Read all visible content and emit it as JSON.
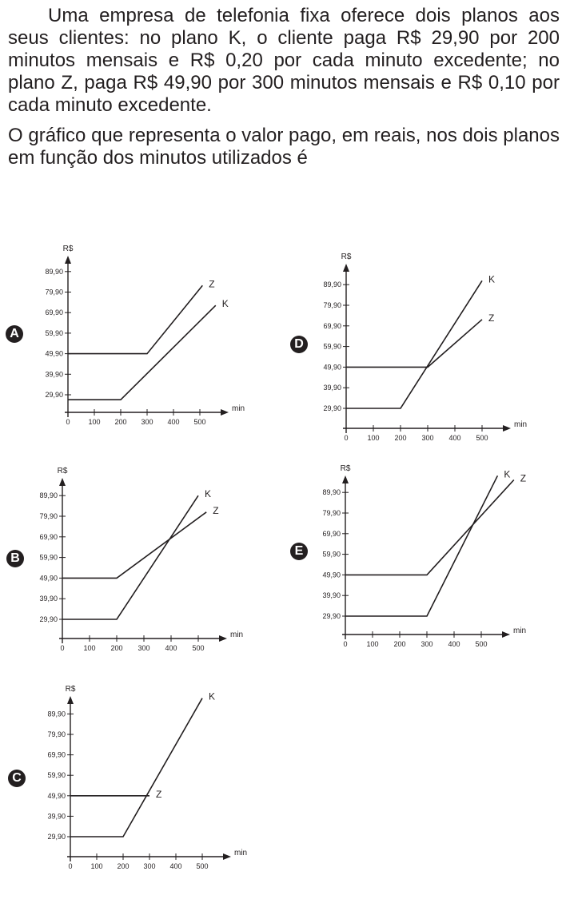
{
  "question": {
    "paragraph1": "Uma empresa de telefonia fixa oferece dois planos aos seus clientes: no plano K, o cliente paga R$ 29,90 por 200 minutos mensais e R$ 0,20 por cada minuto excedente;  no plano Z, paga R$ 49,90 por 300 minutos mensais e R$ 0,10 por cada minuto excedente.",
    "paragraph2": "O gráfico que representa o valor pago, em reais, nos dois planos em função dos minutos utilizados é"
  },
  "chart_data": [
    {
      "option": "A",
      "type": "line",
      "xlabel": "min",
      "ylabel": "R$",
      "xlim": [
        0,
        500
      ],
      "x_ticks": [
        "0",
        "100",
        "200",
        "300",
        "400",
        "500"
      ],
      "y_ticks": [
        "29,90",
        "39,90",
        "49,90",
        "59,90",
        "69,90",
        "79,90",
        "89,90"
      ],
      "series": [
        {
          "name": "K",
          "points": [
            [
              0,
              27.5
            ],
            [
              200,
              27.5
            ],
            [
              560,
              73.4
            ]
          ]
        },
        {
          "name": "Z",
          "points": [
            [
              0,
              49.9
            ],
            [
              300,
              49.9
            ],
            [
              510,
              83.1
            ]
          ]
        }
      ]
    },
    {
      "option": "B",
      "type": "line",
      "xlabel": "min",
      "ylabel": "R$",
      "xlim": [
        0,
        500
      ],
      "x_ticks": [
        "0",
        "100",
        "200",
        "300",
        "400",
        "500"
      ],
      "y_ticks": [
        "29,90",
        "39,90",
        "49,90",
        "59,90",
        "69,90",
        "79,90",
        "89,90"
      ],
      "series": [
        {
          "name": "K",
          "points": [
            [
              0,
              29.9
            ],
            [
              200,
              29.9
            ],
            [
              500,
              89.9
            ]
          ]
        },
        {
          "name": "Z",
          "points": [
            [
              0,
              49.9
            ],
            [
              200,
              49.9
            ],
            [
              530,
              81.9
            ]
          ]
        }
      ]
    },
    {
      "option": "C",
      "type": "line",
      "xlabel": "min",
      "ylabel": "R$",
      "xlim": [
        0,
        500
      ],
      "x_ticks": [
        "0",
        "100",
        "200",
        "300",
        "400",
        "500"
      ],
      "y_ticks": [
        "29,90",
        "39,90",
        "49,90",
        "59,90",
        "69,90",
        "79,90",
        "89,90"
      ],
      "series": [
        {
          "name": "K",
          "points": [
            [
              0,
              29.9
            ],
            [
              200,
              29.9
            ],
            [
              500,
              97.6
            ]
          ]
        },
        {
          "name": "Z",
          "points": [
            [
              0,
              49.9
            ],
            [
              300,
              49.9
            ]
          ]
        }
      ]
    },
    {
      "option": "D",
      "type": "line",
      "xlabel": "min",
      "ylabel": "R$",
      "xlim": [
        0,
        500
      ],
      "x_ticks": [
        "0",
        "100",
        "200",
        "300",
        "400",
        "500"
      ],
      "y_ticks": [
        "29,90",
        "39,90",
        "49,90",
        "59,90",
        "69,90",
        "79,90",
        "89,90"
      ],
      "series": [
        {
          "name": "K",
          "points": [
            [
              0,
              29.9
            ],
            [
              200,
              29.9
            ],
            [
              500,
              91.8
            ]
          ]
        },
        {
          "name": "Z",
          "points": [
            [
              0,
              49.9
            ],
            [
              300,
              49.9
            ],
            [
              500,
              73.0
            ]
          ]
        }
      ]
    },
    {
      "option": "E",
      "type": "line",
      "xlabel": "min",
      "ylabel": "R$",
      "xlim": [
        0,
        500
      ],
      "x_ticks": [
        "0",
        "100",
        "200",
        "300",
        "400",
        "500"
      ],
      "y_ticks": [
        "29,90",
        "39,90",
        "49,90",
        "59,90",
        "69,90",
        "79,90",
        "89,90"
      ],
      "series": [
        {
          "name": "K",
          "points": [
            [
              0,
              29.9
            ],
            [
              300,
              29.9
            ],
            [
              560,
              98.0
            ]
          ]
        },
        {
          "name": "Z",
          "points": [
            [
              0,
              49.9
            ],
            [
              300,
              49.9
            ],
            [
              620,
              96.0
            ]
          ]
        }
      ]
    }
  ]
}
